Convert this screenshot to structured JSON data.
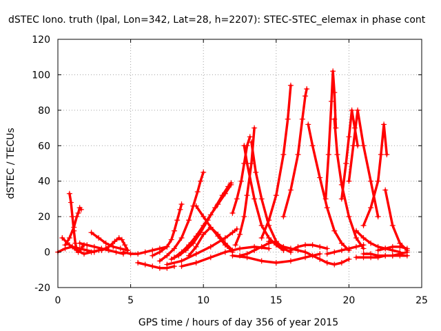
{
  "chart_data": {
    "type": "scatter",
    "title": "dSTEC Iono. truth (Ipal, Lon=342, Lat=28, h=2207): STEC-STEC_elemax in phase cont",
    "xlabel": "GPS time / hours of day 356 of year 2015",
    "ylabel": "dSTEC  / TECUs",
    "xlim": [
      0,
      25
    ],
    "ylim": [
      -20,
      120
    ],
    "xticks": [
      0,
      5,
      10,
      15,
      20,
      25
    ],
    "yticks": [
      -20,
      0,
      20,
      40,
      60,
      80,
      100,
      120
    ],
    "grid": true,
    "marker": "+",
    "color": "#ff0000",
    "series": [
      {
        "x": [
          0.0,
          0.5,
          1.0,
          1.5,
          2.0,
          2.5
        ],
        "y": [
          0,
          2,
          3,
          2,
          1,
          0
        ]
      },
      {
        "x": [
          0.3,
          0.8,
          1.3,
          1.8,
          2.3,
          2.8,
          3.3
        ],
        "y": [
          8,
          4,
          1,
          -1,
          0,
          1,
          2
        ]
      },
      {
        "x": [
          0.8,
          0.9,
          1.0,
          1.1,
          1.2,
          1.3,
          1.4,
          1.6,
          1.8
        ],
        "y": [
          33,
          28,
          20,
          12,
          5,
          1,
          0,
          2,
          4
        ]
      },
      {
        "x": [
          0.5,
          0.8,
          1.1,
          1.3,
          1.4,
          1.5,
          1.6
        ],
        "y": [
          4,
          8,
          14,
          20,
          22,
          25,
          24
        ]
      },
      {
        "x": [
          1.5,
          2.0,
          2.5,
          3.0,
          3.5,
          4.0,
          4.5
        ],
        "y": [
          5,
          4,
          3,
          2,
          1,
          0,
          -1
        ]
      },
      {
        "x": [
          2.3,
          2.8,
          3.3,
          3.8,
          4.3,
          4.8
        ],
        "y": [
          11,
          8,
          5,
          3,
          2,
          1
        ]
      },
      {
        "x": [
          3.0,
          3.5,
          3.9,
          4.2,
          4.4,
          4.6,
          4.8
        ],
        "y": [
          1,
          3,
          6,
          8,
          7,
          4,
          1
        ]
      },
      {
        "x": [
          4.5,
          5.0,
          5.5,
          6.0,
          6.5,
          7.0,
          7.5
        ],
        "y": [
          0,
          -1,
          -1,
          0,
          1,
          2,
          3
        ]
      },
      {
        "x": [
          5.5,
          6.0,
          6.5,
          7.0,
          7.5,
          8.0
        ],
        "y": [
          -6,
          -7,
          -8,
          -9,
          -9,
          -8
        ]
      },
      {
        "x": [
          6.5,
          7.0,
          7.5,
          7.8,
          8.0,
          8.2,
          8.4,
          8.5
        ],
        "y": [
          -2,
          0,
          3,
          7,
          12,
          18,
          24,
          27
        ]
      },
      {
        "x": [
          7.0,
          7.5,
          8.0,
          8.5,
          9.0,
          9.3,
          9.6,
          9.8,
          10.0
        ],
        "y": [
          -5,
          -2,
          2,
          8,
          18,
          26,
          34,
          40,
          45
        ]
      },
      {
        "x": [
          7.8,
          8.3,
          8.8,
          9.3,
          9.8,
          10.3,
          10.8,
          11.3,
          11.7,
          11.9
        ],
        "y": [
          -4,
          -2,
          1,
          5,
          11,
          18,
          25,
          32,
          37,
          39
        ]
      },
      {
        "x": [
          8.0,
          8.5,
          9.0,
          9.5,
          10.0,
          10.5,
          11.0,
          11.5,
          11.9
        ],
        "y": [
          -3,
          0,
          4,
          9,
          15,
          21,
          27,
          33,
          38
        ]
      },
      {
        "x": [
          7.5,
          8.5,
          9.5,
          10.5,
          11.5,
          12.0,
          12.3
        ],
        "y": [
          -7,
          -5,
          -1,
          3,
          8,
          11,
          13
        ]
      },
      {
        "x": [
          8.5,
          9.5,
          10.5,
          11.5,
          12.5,
          13.5,
          14.5
        ],
        "y": [
          -8,
          -6,
          -3,
          0,
          2,
          3,
          2
        ]
      },
      {
        "x": [
          9.0,
          9.5,
          10.0,
          10.5,
          11.0,
          11.5,
          12.0
        ],
        "y": [
          -2,
          3,
          10,
          14,
          10,
          5,
          1
        ]
      },
      {
        "x": [
          9.5,
          10.0,
          10.5,
          11.0,
          11.5,
          11.8,
          12.0
        ],
        "y": [
          26,
          20,
          14,
          9,
          4,
          2,
          0
        ]
      },
      {
        "x": [
          12.0,
          12.3,
          12.6,
          12.8,
          13.0,
          13.2
        ],
        "y": [
          22,
          30,
          40,
          50,
          60,
          65
        ]
      },
      {
        "x": [
          12.2,
          12.5,
          12.8,
          13.0,
          13.3,
          13.5
        ],
        "y": [
          4,
          10,
          20,
          32,
          50,
          70
        ]
      },
      {
        "x": [
          12.8,
          13.0,
          13.5,
          14.0,
          14.5,
          15.0,
          15.5
        ],
        "y": [
          60,
          50,
          30,
          15,
          8,
          4,
          1
        ]
      },
      {
        "x": [
          13.3,
          13.6,
          14.0,
          14.5,
          15.0,
          15.5,
          16.0
        ],
        "y": [
          62,
          45,
          30,
          15,
          6,
          2,
          0
        ]
      },
      {
        "x": [
          12.5,
          13.0,
          13.5,
          14.0,
          14.5,
          15.0
        ],
        "y": [
          -2,
          -1,
          1,
          3,
          5,
          6
        ]
      },
      {
        "x": [
          12.0,
          13.0,
          14.0,
          15.0,
          16.0,
          17.0,
          18.0
        ],
        "y": [
          -2,
          -3,
          -5,
          -6,
          -5,
          -3,
          -1
        ]
      },
      {
        "x": [
          14.0,
          14.5,
          15.0,
          15.5,
          15.8,
          16.0
        ],
        "y": [
          8,
          18,
          32,
          55,
          75,
          94
        ]
      },
      {
        "x": [
          14.5,
          15.0,
          15.5,
          16.0,
          16.5,
          17.0
        ],
        "y": [
          6,
          5,
          3,
          2,
          1,
          0
        ]
      },
      {
        "x": [
          15.5,
          16.0,
          16.5,
          16.8,
          17.0,
          17.1
        ],
        "y": [
          20,
          35,
          55,
          75,
          88,
          92
        ]
      },
      {
        "x": [
          16.0,
          16.5,
          17.0,
          17.5,
          18.0,
          18.5
        ],
        "y": [
          1,
          3,
          4,
          4,
          3,
          2
        ]
      },
      {
        "x": [
          17.2,
          17.5,
          18.0,
          18.5,
          19.0,
          19.5,
          20.0
        ],
        "y": [
          72,
          60,
          42,
          25,
          12,
          5,
          1
        ]
      },
      {
        "x": [
          17.0,
          17.5,
          18.0,
          18.5,
          19.0,
          19.5,
          20.0
        ],
        "y": [
          0,
          -2,
          -4,
          -6,
          -7,
          -6,
          -4
        ]
      },
      {
        "x": [
          18.4,
          18.6,
          18.8,
          18.9,
          19.0,
          19.1
        ],
        "y": [
          30,
          55,
          85,
          102,
          90,
          70
        ]
      },
      {
        "x": [
          19.0,
          19.2,
          19.5,
          20.0,
          20.5,
          21.0
        ],
        "y": [
          75,
          55,
          38,
          20,
          8,
          2
        ]
      },
      {
        "x": [
          18.5,
          19.0,
          19.5,
          20.0,
          20.5,
          21.0
        ],
        "y": [
          -1,
          0,
          1,
          2,
          3,
          4
        ]
      },
      {
        "x": [
          19.5,
          19.8,
          20.0,
          20.2,
          20.4,
          20.6
        ],
        "y": [
          30,
          50,
          65,
          80,
          70,
          60
        ]
      },
      {
        "x": [
          20.0,
          20.3,
          20.6,
          21.0,
          21.5,
          22.0
        ],
        "y": [
          40,
          60,
          80,
          60,
          40,
          20
        ]
      },
      {
        "x": [
          20.5,
          21.0,
          21.5,
          22.0,
          22.5,
          23.0,
          23.5
        ],
        "y": [
          12,
          8,
          5,
          3,
          2,
          1,
          0
        ]
      },
      {
        "x": [
          21.0,
          21.5,
          22.0,
          22.2,
          22.4,
          22.6
        ],
        "y": [
          15,
          25,
          40,
          55,
          72,
          55
        ]
      },
      {
        "x": [
          22.5,
          23.0,
          23.5,
          24.0
        ],
        "y": [
          35,
          15,
          5,
          1
        ]
      },
      {
        "x": [
          21.0,
          21.5,
          22.0,
          22.5,
          23.0,
          23.5,
          24.0
        ],
        "y": [
          -1,
          -1,
          -2,
          -2,
          -2,
          -1,
          0
        ]
      },
      {
        "x": [
          22.0,
          22.5,
          23.0,
          23.5,
          24.0
        ],
        "y": [
          1,
          2,
          3,
          3,
          2
        ]
      },
      {
        "x": [
          20.5,
          21.0,
          21.5,
          22.0,
          22.5,
          23.0,
          23.5,
          24.0
        ],
        "y": [
          -3,
          -3,
          -3,
          -3,
          -2,
          -2,
          -2,
          -2
        ]
      }
    ]
  }
}
